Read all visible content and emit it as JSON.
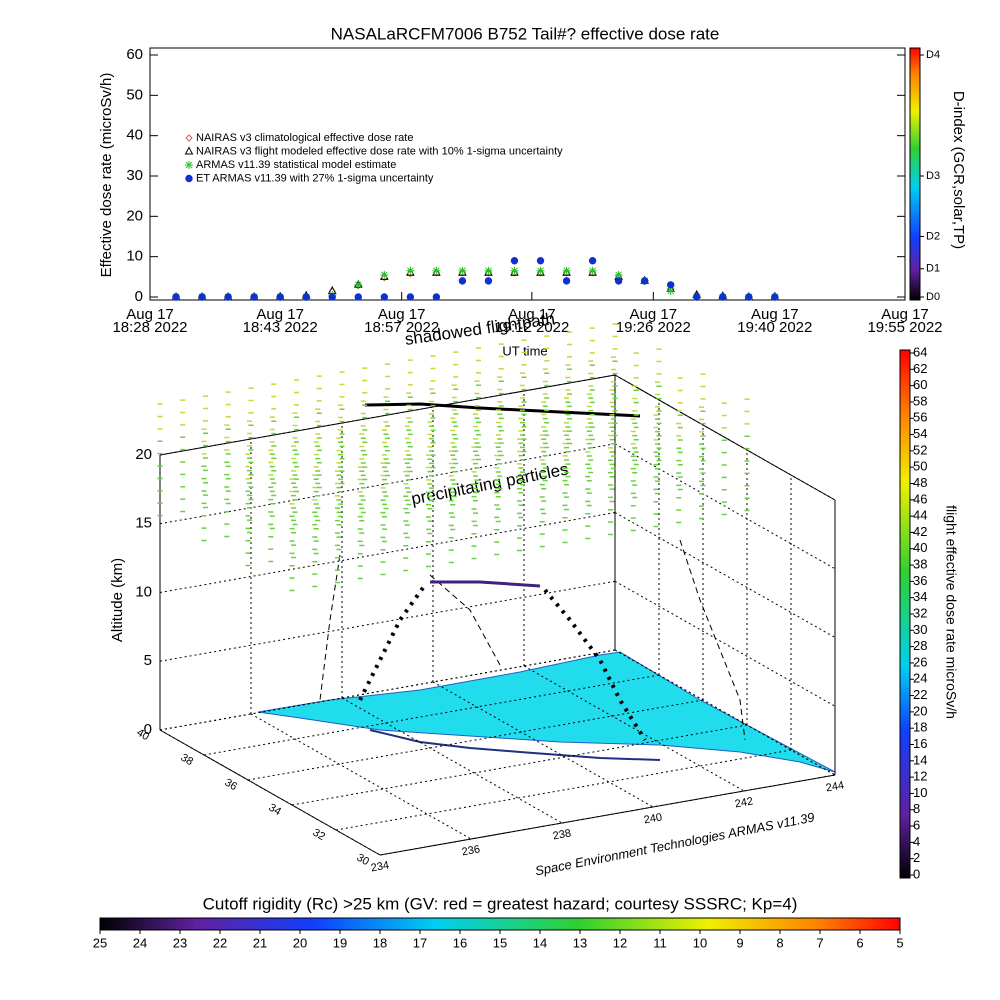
{
  "chart_data": [
    {
      "type": "scatter",
      "title": "NASALaRCFM7006  B752 Tail#? effective dose rate",
      "x_label": "UT time",
      "y_label": "Effective dose rate (microSv/h)",
      "xlim": [
        "18:28",
        "19:55"
      ],
      "xticks": [
        {
          "value": "18:28",
          "label": [
            "Aug 17",
            "18:28 2022"
          ]
        },
        {
          "value": "18:43",
          "label": [
            "Aug 17",
            "18:43 2022"
          ]
        },
        {
          "value": "18:57",
          "label": [
            "Aug 17",
            "18:57 2022"
          ]
        },
        {
          "value": "19:12",
          "label": [
            "Aug 17",
            "19:12 2022"
          ]
        },
        {
          "value": "19:26",
          "label": [
            "Aug 17",
            "19:26 2022"
          ]
        },
        {
          "value": "19:40",
          "label": [
            "Aug 17",
            "19:40 2022"
          ]
        },
        {
          "value": "19:55",
          "label": [
            "Aug 17",
            "19:55 2022"
          ]
        }
      ],
      "ylim": [
        0,
        60
      ],
      "yticks": [
        0,
        10,
        20,
        30,
        40,
        50,
        60
      ],
      "x": [
        "18:31",
        "18:34",
        "18:37",
        "18:40",
        "18:43",
        "18:46",
        "18:49",
        "18:52",
        "18:55",
        "18:58",
        "19:01",
        "19:04",
        "19:07",
        "19:10",
        "19:13",
        "19:16",
        "19:19",
        "19:22",
        "19:25",
        "19:28",
        "19:31",
        "19:34",
        "19:37",
        "19:40"
      ],
      "series": [
        {
          "name": "NAIRAS v3 climatological effective dose rate",
          "color": "#d06060",
          "marker": "diamond",
          "values": [
            0,
            0,
            0,
            0,
            0,
            0.3,
            1.4,
            2.8,
            4.8,
            5.8,
            6,
            6,
            6,
            6,
            6,
            6,
            6,
            5,
            4,
            2,
            0.5,
            0.2,
            0,
            0
          ]
        },
        {
          "name": "NAIRAS v3 flight modeled effective dose rate with 10% 1-sigma uncertainty",
          "color": "#000000",
          "marker": "triangle",
          "values": [
            0,
            0,
            0,
            0,
            0,
            0.3,
            1.5,
            3,
            5,
            6,
            6,
            6,
            6,
            6,
            6,
            6,
            6,
            5,
            4,
            2,
            0.5,
            0.2,
            0,
            0
          ]
        },
        {
          "name": "ARMAS v11.39 statistical model estimate",
          "color": "#30c030",
          "marker": "asterisk",
          "values": [
            0,
            0,
            0,
            0,
            0,
            0,
            0.5,
            3,
            5.5,
            6.5,
            6.5,
            6.5,
            6.5,
            6.5,
            6.5,
            6.5,
            6.5,
            5.5,
            4,
            1.5,
            0,
            0,
            0,
            0
          ]
        },
        {
          "name": "ET ARMAS v11.39 with 27% 1-sigma uncertainty",
          "color": "#1030d0",
          "marker": "circle",
          "values": [
            0,
            0,
            0,
            0,
            0,
            0,
            0,
            0,
            0,
            0,
            0,
            4,
            4,
            9,
            9,
            4,
            9,
            4,
            4,
            3,
            0,
            0,
            0,
            0
          ]
        }
      ],
      "colorbar": {
        "label": "D-index (GCR,solar,TP)",
        "lim": [
          0,
          60
        ],
        "ticks": [
          {
            "value": 0,
            "label": "D0"
          },
          {
            "value": 7,
            "label": "D1"
          },
          {
            "value": 15,
            "label": "D2"
          },
          {
            "value": 30,
            "label": "D3"
          },
          {
            "value": 60,
            "label": "D4"
          }
        ]
      }
    },
    {
      "type": "scatter3d",
      "z_label": "Altitude (km)",
      "caption": "Space Environment Technologies ARMAS v11.39",
      "annotations": [
        "shadowed flightpath",
        "precipitating particles"
      ],
      "xlim": [
        234,
        244
      ],
      "xticks": [
        234,
        236,
        238,
        240,
        242,
        244
      ],
      "ylim": [
        30,
        40
      ],
      "yticks": [
        40,
        38,
        36,
        34,
        32,
        30
      ],
      "zlim": [
        0,
        20
      ],
      "zticks": [
        0,
        5,
        10,
        15,
        20
      ],
      "colorbar": {
        "label": "flight effective dose rate microSv/h",
        "lim": [
          0,
          64
        ],
        "ticks": [
          0,
          2,
          4,
          6,
          8,
          10,
          12,
          14,
          16,
          18,
          20,
          22,
          24,
          26,
          28,
          30,
          32,
          34,
          36,
          38,
          40,
          42,
          44,
          46,
          48,
          50,
          52,
          54,
          56,
          58,
          60,
          62,
          64
        ]
      },
      "colorbar2": {
        "label": "Cutoff rigidity (Rc) >25 km (GV: red = greatest hazard; courtesy SSSRC; Kp=4)",
        "lim": [
          25,
          5
        ],
        "ticks": [
          25,
          24,
          23,
          22,
          21,
          20,
          19,
          18,
          17,
          16,
          15,
          14,
          13,
          12,
          11,
          10,
          9,
          8,
          7,
          6,
          5
        ]
      }
    }
  ]
}
